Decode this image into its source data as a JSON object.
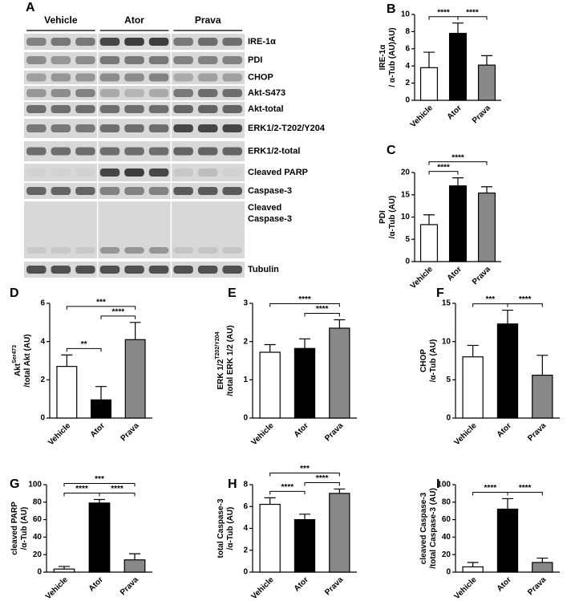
{
  "blot": {
    "label": "A",
    "groups": [
      "Vehicle",
      "Ator",
      "Prava"
    ],
    "bands": [
      [
        "IRE-1α"
      ],
      [
        "PDI"
      ],
      [
        "CHOP"
      ],
      [
        "Akt-S473"
      ],
      [
        "Akt-total"
      ],
      [
        "ERK1/2-T202/Y204"
      ],
      [
        "ERK1/2-total"
      ],
      [
        "Cleaved PARP"
      ],
      [
        "Caspase-3"
      ],
      [
        "Cleaved",
        "Caspase-3"
      ],
      [
        "Tubulin"
      ]
    ]
  },
  "chart_data": [
    {
      "type": "bar",
      "label": "B",
      "ylabel": [
        {
          "text": "IRE-1α"
        },
        {
          "text": "/ α-Tub (AU)AU)"
        }
      ],
      "categories": [
        "Vehicle",
        "Ator",
        "Prava"
      ],
      "values": [
        3.8,
        7.8,
        4.1
      ],
      "errors": [
        1.8,
        1.2,
        1.1
      ],
      "colors": [
        "#ffffff",
        "#000000",
        "#888888"
      ],
      "ylim": [
        0,
        10
      ],
      "yticks": [
        0,
        2,
        4,
        6,
        8,
        10
      ],
      "brackets": [
        {
          "from": 0,
          "to": 1,
          "label": "****"
        },
        {
          "from": 1,
          "to": 2,
          "label": "****"
        }
      ]
    },
    {
      "type": "bar",
      "label": "C",
      "ylabel": [
        {
          "text": "PDI"
        },
        {
          "text": "/α-Tub (AU)"
        }
      ],
      "categories": [
        "Vehicle",
        "Ator",
        "Prava"
      ],
      "values": [
        8.3,
        17,
        15.4
      ],
      "errors": [
        2.2,
        1.8,
        1.4
      ],
      "colors": [
        "#ffffff",
        "#000000",
        "#888888"
      ],
      "ylim": [
        0,
        20
      ],
      "yticks": [
        0,
        5,
        10,
        15,
        20
      ],
      "brackets": [
        {
          "from": 0,
          "to": 1,
          "label": "****"
        },
        {
          "from": 0,
          "to": 2,
          "label": "****"
        }
      ]
    },
    {
      "type": "bar",
      "label": "D",
      "ylabel": [
        {
          "text": "Akt",
          "sup": "Ser473"
        },
        {
          "text": "/total Akt (AU)"
        }
      ],
      "categories": [
        "Vehicle",
        "Ator",
        "Prava"
      ],
      "values": [
        2.7,
        0.95,
        4.1
      ],
      "errors": [
        0.6,
        0.7,
        0.9
      ],
      "colors": [
        "#ffffff",
        "#000000",
        "#888888"
      ],
      "ylim": [
        0,
        6
      ],
      "yticks": [
        0,
        2,
        4,
        6
      ],
      "brackets": [
        {
          "from": 0,
          "to": 1,
          "label": "**"
        },
        {
          "from": 1,
          "to": 2,
          "label": "****"
        },
        {
          "from": 0,
          "to": 2,
          "label": "***"
        }
      ]
    },
    {
      "type": "bar",
      "label": "E",
      "ylabel": [
        {
          "text": "ERK 1/2",
          "sup": "T202/Y204"
        },
        {
          "text": "/total ERK 1/2 (AU)"
        }
      ],
      "categories": [
        "Vehicle",
        "Ator",
        "Prava"
      ],
      "values": [
        1.72,
        1.82,
        2.35
      ],
      "errors": [
        0.2,
        0.25,
        0.22
      ],
      "colors": [
        "#ffffff",
        "#000000",
        "#888888"
      ],
      "ylim": [
        0,
        3
      ],
      "yticks": [
        0,
        1,
        2,
        3
      ],
      "brackets": [
        {
          "from": 1,
          "to": 2,
          "label": "****"
        },
        {
          "from": 0,
          "to": 2,
          "label": "****"
        }
      ]
    },
    {
      "type": "bar",
      "label": "F",
      "ylabel": [
        {
          "text": "CHOP"
        },
        {
          "text": "/α-Tub (AU)"
        }
      ],
      "categories": [
        "Vehicle",
        "Ator",
        "Prava"
      ],
      "values": [
        8.0,
        12.3,
        5.6
      ],
      "errors": [
        1.5,
        1.8,
        2.6
      ],
      "colors": [
        "#ffffff",
        "#000000",
        "#888888"
      ],
      "ylim": [
        0,
        15
      ],
      "yticks": [
        0,
        5,
        10,
        15
      ],
      "brackets": [
        {
          "from": 0,
          "to": 1,
          "label": "***"
        },
        {
          "from": 1,
          "to": 2,
          "label": "****"
        }
      ]
    },
    {
      "type": "bar",
      "label": "G",
      "ylabel": [
        {
          "text": "cleaved PARP"
        },
        {
          "text": "/α-Tub (AU)"
        }
      ],
      "categories": [
        "Vehicle",
        "Ator",
        "Prava"
      ],
      "values": [
        3.5,
        79,
        14
      ],
      "errors": [
        3,
        4,
        7
      ],
      "colors": [
        "#ffffff",
        "#000000",
        "#888888"
      ],
      "ylim": [
        0,
        100
      ],
      "yticks": [
        0,
        20,
        40,
        60,
        80,
        100
      ],
      "brackets": [
        {
          "from": 0,
          "to": 1,
          "label": "****"
        },
        {
          "from": 1,
          "to": 2,
          "label": "****"
        },
        {
          "from": 0,
          "to": 2,
          "label": "***"
        }
      ]
    },
    {
      "type": "bar",
      "label": "H",
      "ylabel": [
        {
          "text": "total Caspase-3"
        },
        {
          "text": "/α-Tub (AU)"
        }
      ],
      "categories": [
        "Vehicle",
        "Ator",
        "Prava"
      ],
      "values": [
        6.2,
        4.8,
        7.2
      ],
      "errors": [
        0.6,
        0.5,
        0.4
      ],
      "colors": [
        "#ffffff",
        "#000000",
        "#888888"
      ],
      "ylim": [
        0,
        8
      ],
      "yticks": [
        0,
        2,
        4,
        6,
        8
      ],
      "brackets": [
        {
          "from": 0,
          "to": 1,
          "label": "****"
        },
        {
          "from": 1,
          "to": 2,
          "label": "****"
        },
        {
          "from": 0,
          "to": 2,
          "label": "***"
        }
      ]
    },
    {
      "type": "bar",
      "label": "I",
      "ylabel": [
        {
          "text": "cleaved Caspase-3"
        },
        {
          "text": "/total Caspase-3 (AU)"
        }
      ],
      "categories": [
        "Vehicle",
        "Ator",
        "Prava"
      ],
      "values": [
        6,
        72,
        11
      ],
      "errors": [
        5,
        12,
        5
      ],
      "colors": [
        "#ffffff",
        "#000000",
        "#888888"
      ],
      "ylim": [
        0,
        100
      ],
      "yticks": [
        0,
        20,
        40,
        60,
        80,
        100
      ],
      "brackets": [
        {
          "from": 0,
          "to": 1,
          "label": "****"
        },
        {
          "from": 1,
          "to": 2,
          "label": "****"
        }
      ]
    }
  ]
}
